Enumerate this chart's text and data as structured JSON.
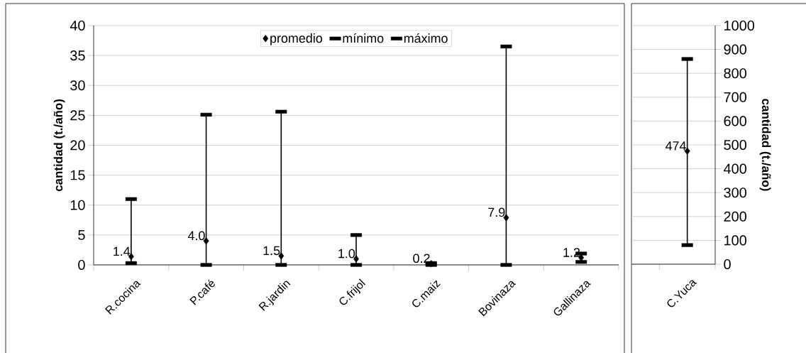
{
  "chart_data": [
    {
      "type": "scatter",
      "ylabel": "cantidad (t./año)",
      "categories": [
        "R.cocina",
        "P.café",
        "R.jardin",
        "C.frijol",
        "C.maiz",
        "Bovinaza",
        "Gallinaza"
      ],
      "series": [
        {
          "name": "promedio",
          "color": "#000000",
          "marker": "diamond",
          "values": [
            1.4,
            4.0,
            1.5,
            1.0,
            0.2,
            7.9,
            1.2
          ],
          "value_labels": [
            "1.4",
            "4.0",
            "1.5",
            "1.0",
            "0.2",
            "7.9",
            "1.2"
          ]
        },
        {
          "name": "mínimo",
          "color": "#000000",
          "marker": "square",
          "values": [
            0.3,
            0,
            0,
            0,
            0,
            0,
            0.5
          ]
        },
        {
          "name": "máximo",
          "color": "#000000",
          "marker": "square",
          "values": [
            11,
            25.1,
            25.6,
            5,
            0.3,
            36.5,
            1.9
          ]
        }
      ],
      "ylim": [
        0,
        40
      ],
      "yticks": [
        0,
        5,
        10,
        15,
        20,
        25,
        30,
        35,
        40
      ],
      "grid": "y",
      "legend": "top"
    },
    {
      "type": "scatter",
      "ylabel": "cantidad (t./año)",
      "categories": [
        "C.Yuca"
      ],
      "series": [
        {
          "color": "#000000",
          "marker": "diamond",
          "values": [
            474
          ],
          "value_labels": [
            "474"
          ]
        },
        {
          "color": "#000000",
          "marker": "square",
          "values": [
            80
          ]
        },
        {
          "color": "#000000",
          "marker": "square",
          "values": [
            860
          ]
        }
      ],
      "ylim": [
        0,
        1000
      ],
      "yticks": [
        0,
        100,
        200,
        300,
        400,
        500,
        600,
        700,
        800,
        900,
        1000
      ],
      "grid": "y"
    }
  ]
}
